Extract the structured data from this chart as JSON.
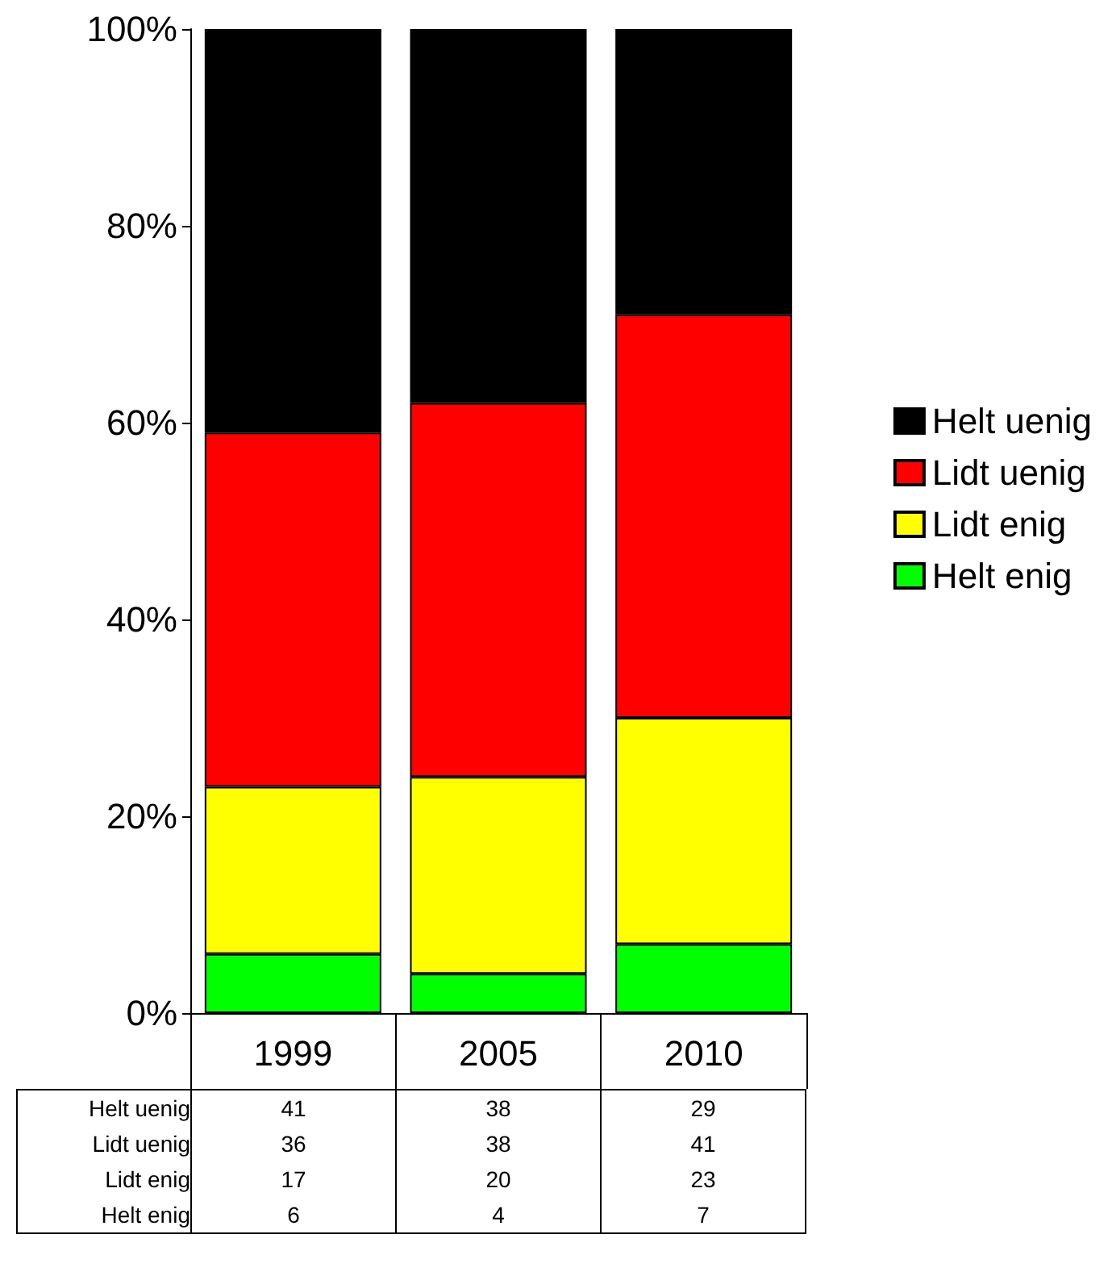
{
  "chart_data": {
    "type": "bar",
    "stacked": true,
    "categories": [
      "1999",
      "2005",
      "2010"
    ],
    "series": [
      {
        "name": "Helt enig",
        "color": "#00ff00",
        "values": [
          6,
          4,
          7
        ]
      },
      {
        "name": "Lidt enig",
        "color": "#ffff00",
        "values": [
          17,
          20,
          23
        ]
      },
      {
        "name": "Lidt uenig",
        "color": "#ff0000",
        "values": [
          36,
          38,
          41
        ]
      },
      {
        "name": "Helt uenig",
        "color": "#000000",
        "values": [
          41,
          38,
          29
        ]
      }
    ],
    "ylim": [
      0,
      100
    ],
    "yticks": [
      {
        "value": 0,
        "label": "0%"
      },
      {
        "value": 20,
        "label": "20%"
      },
      {
        "value": 40,
        "label": "40%"
      },
      {
        "value": 60,
        "label": "60%"
      },
      {
        "value": 80,
        "label": "80%"
      },
      {
        "value": 100,
        "label": "100%"
      }
    ],
    "grid": false,
    "legend": "right",
    "data_labels": true
  }
}
